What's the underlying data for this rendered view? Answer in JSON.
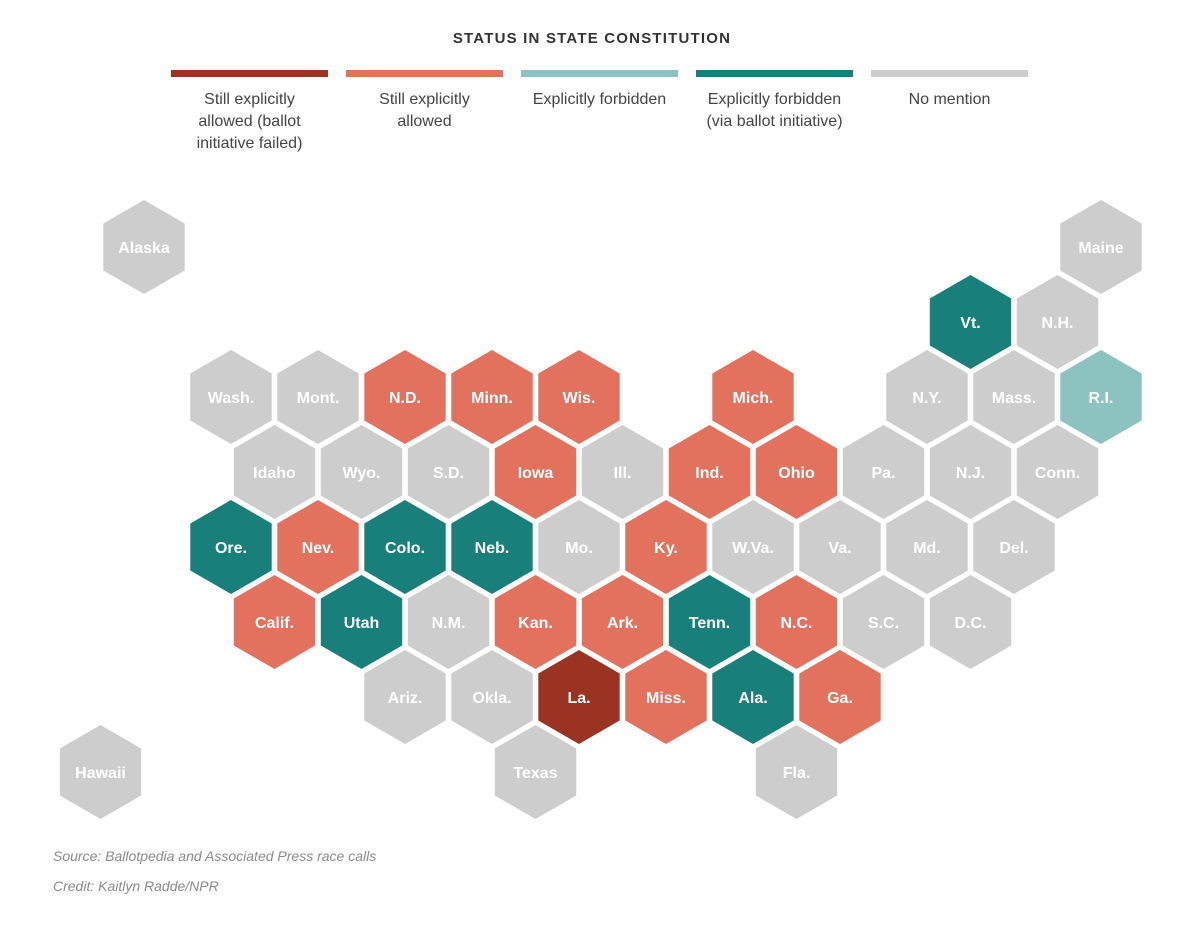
{
  "title": "STATUS IN STATE CONSTITUTION",
  "legend": [
    {
      "key": "failed",
      "label": "Still explicitly\nallowed (ballot\ninitiative failed)",
      "color": "#9b3323"
    },
    {
      "key": "allowed",
      "label": "Still explicitly\nallowed",
      "color": "#e2725e"
    },
    {
      "key": "forbidden",
      "label": "Explicitly forbidden",
      "color": "#8cc2c0"
    },
    {
      "key": "ballot",
      "label": "Explicitly forbidden\n(via ballot initiative)",
      "color": "#197f7a"
    },
    {
      "key": "none",
      "label": "No mention",
      "color": "#cdcdcd"
    }
  ],
  "states": [
    {
      "abbr": "Alaska",
      "row": 0,
      "col": 0.5,
      "status": "none"
    },
    {
      "abbr": "Maine",
      "row": 0,
      "col": 11.5,
      "status": "none"
    },
    {
      "abbr": "Vt.",
      "row": 1,
      "col": 10,
      "status": "ballot"
    },
    {
      "abbr": "N.H.",
      "row": 1,
      "col": 11,
      "status": "none"
    },
    {
      "abbr": "Wash.",
      "row": 2,
      "col": 1.5,
      "status": "none"
    },
    {
      "abbr": "Mont.",
      "row": 2,
      "col": 2.5,
      "status": "none"
    },
    {
      "abbr": "N.D.",
      "row": 2,
      "col": 3.5,
      "status": "allowed"
    },
    {
      "abbr": "Minn.",
      "row": 2,
      "col": 4.5,
      "status": "allowed"
    },
    {
      "abbr": "Wis.",
      "row": 2,
      "col": 5.5,
      "status": "allowed"
    },
    {
      "abbr": "Mich.",
      "row": 2,
      "col": 7.5,
      "status": "allowed"
    },
    {
      "abbr": "N.Y.",
      "row": 2,
      "col": 9.5,
      "status": "none"
    },
    {
      "abbr": "Mass.",
      "row": 2,
      "col": 10.5,
      "status": "none"
    },
    {
      "abbr": "R.I.",
      "row": 2,
      "col": 11.5,
      "status": "forbidden"
    },
    {
      "abbr": "Idaho",
      "row": 3,
      "col": 2,
      "status": "none"
    },
    {
      "abbr": "Wyo.",
      "row": 3,
      "col": 3,
      "status": "none"
    },
    {
      "abbr": "S.D.",
      "row": 3,
      "col": 4,
      "status": "none"
    },
    {
      "abbr": "Iowa",
      "row": 3,
      "col": 5,
      "status": "allowed"
    },
    {
      "abbr": "Ill.",
      "row": 3,
      "col": 6,
      "status": "none"
    },
    {
      "abbr": "Ind.",
      "row": 3,
      "col": 7,
      "status": "allowed"
    },
    {
      "abbr": "Ohio",
      "row": 3,
      "col": 8,
      "status": "allowed"
    },
    {
      "abbr": "Pa.",
      "row": 3,
      "col": 9,
      "status": "none"
    },
    {
      "abbr": "N.J.",
      "row": 3,
      "col": 10,
      "status": "none"
    },
    {
      "abbr": "Conn.",
      "row": 3,
      "col": 11,
      "status": "none"
    },
    {
      "abbr": "Ore.",
      "row": 4,
      "col": 1.5,
      "status": "ballot"
    },
    {
      "abbr": "Nev.",
      "row": 4,
      "col": 2.5,
      "status": "allowed"
    },
    {
      "abbr": "Colo.",
      "row": 4,
      "col": 3.5,
      "status": "ballot"
    },
    {
      "abbr": "Neb.",
      "row": 4,
      "col": 4.5,
      "status": "ballot"
    },
    {
      "abbr": "Mo.",
      "row": 4,
      "col": 5.5,
      "status": "none"
    },
    {
      "abbr": "Ky.",
      "row": 4,
      "col": 6.5,
      "status": "allowed"
    },
    {
      "abbr": "W.Va.",
      "row": 4,
      "col": 7.5,
      "status": "none"
    },
    {
      "abbr": "Va.",
      "row": 4,
      "col": 8.5,
      "status": "none"
    },
    {
      "abbr": "Md.",
      "row": 4,
      "col": 9.5,
      "status": "none"
    },
    {
      "abbr": "Del.",
      "row": 4,
      "col": 10.5,
      "status": "none"
    },
    {
      "abbr": "Calif.",
      "row": 5,
      "col": 2,
      "status": "allowed"
    },
    {
      "abbr": "Utah",
      "row": 5,
      "col": 3,
      "status": "ballot"
    },
    {
      "abbr": "N.M.",
      "row": 5,
      "col": 4,
      "status": "none"
    },
    {
      "abbr": "Kan.",
      "row": 5,
      "col": 5,
      "status": "allowed"
    },
    {
      "abbr": "Ark.",
      "row": 5,
      "col": 6,
      "status": "allowed"
    },
    {
      "abbr": "Tenn.",
      "row": 5,
      "col": 7,
      "status": "ballot"
    },
    {
      "abbr": "N.C.",
      "row": 5,
      "col": 8,
      "status": "allowed"
    },
    {
      "abbr": "S.C.",
      "row": 5,
      "col": 9,
      "status": "none"
    },
    {
      "abbr": "D.C.",
      "row": 5,
      "col": 10,
      "status": "none"
    },
    {
      "abbr": "Ariz.",
      "row": 6,
      "col": 3.5,
      "status": "none"
    },
    {
      "abbr": "Okla.",
      "row": 6,
      "col": 4.5,
      "status": "none"
    },
    {
      "abbr": "La.",
      "row": 6,
      "col": 5.5,
      "status": "failed"
    },
    {
      "abbr": "Miss.",
      "row": 6,
      "col": 6.5,
      "status": "allowed"
    },
    {
      "abbr": "Ala.",
      "row": 6,
      "col": 7.5,
      "status": "ballot"
    },
    {
      "abbr": "Ga.",
      "row": 6,
      "col": 8.5,
      "status": "allowed"
    },
    {
      "abbr": "Hawaii",
      "row": 7,
      "col": 0,
      "status": "none"
    },
    {
      "abbr": "Texas",
      "row": 7,
      "col": 5,
      "status": "none"
    },
    {
      "abbr": "Fla.",
      "row": 7,
      "col": 8,
      "status": "none"
    }
  ],
  "source": "Source: Ballotpedia and Associated Press race calls",
  "credit": "Credit: Kaitlyn Radde/NPR"
}
